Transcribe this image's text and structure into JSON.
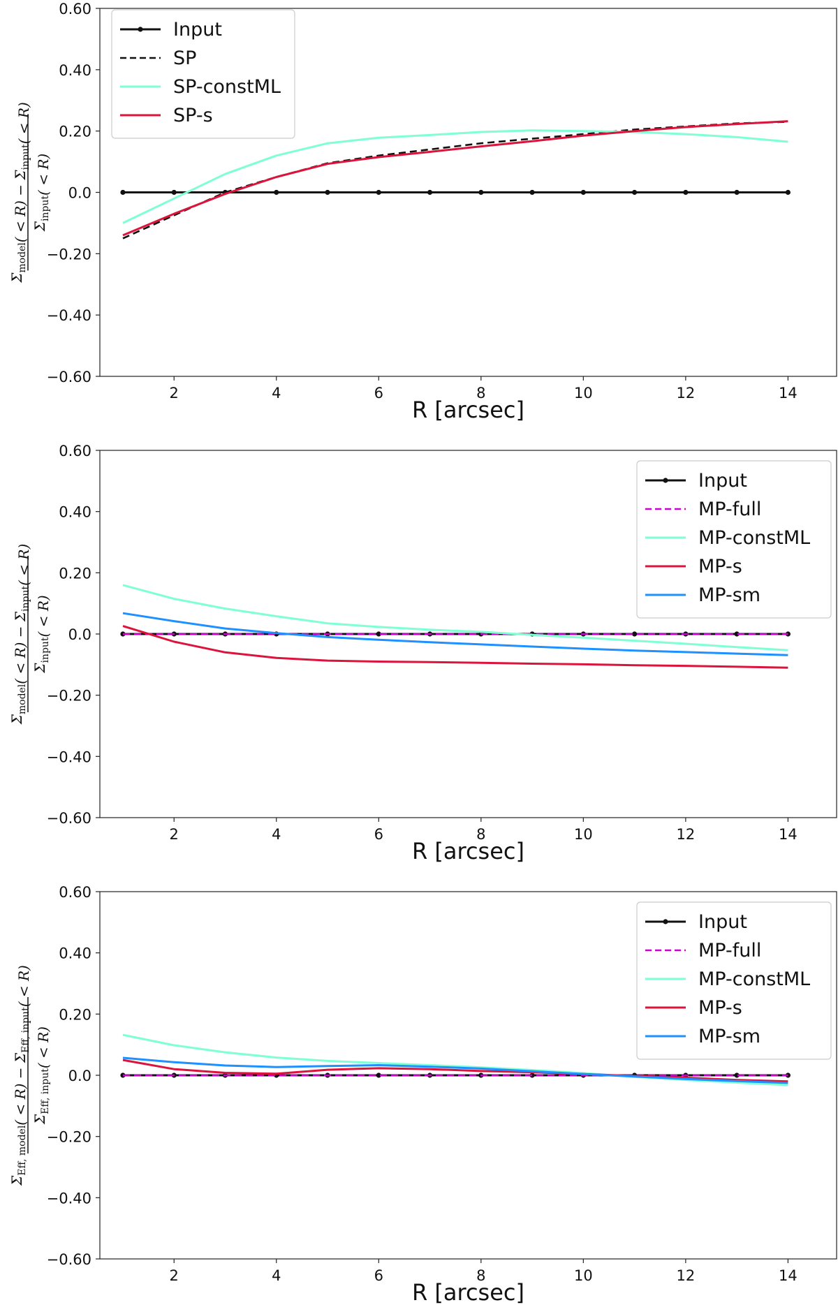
{
  "chart_data": [
    {
      "type": "line",
      "panel": "top",
      "title": "",
      "xlabel": "R [arcsec]",
      "ylabel": {
        "numerator": "Σmodel(<R) − Σinput(<R)",
        "denominator": "Σinput(<R)",
        "num_parts": [
          {
            "t": "Σ",
            "sub": "model"
          },
          {
            "t": "( < R) − Σ"
          },
          {
            "t": "",
            "sub": "input"
          },
          {
            "t": "( < R)"
          }
        ],
        "den_parts": [
          {
            "t": "Σ",
            "sub": "input"
          },
          {
            "t": "( < R)"
          }
        ]
      },
      "xlim": [
        0.55,
        14.95
      ],
      "ylim": [
        -0.6,
        0.6
      ],
      "xticks": [
        2,
        4,
        6,
        8,
        10,
        12,
        14
      ],
      "xtick_labels": [
        "2",
        "4",
        "6",
        "8",
        "10",
        "12",
        "14"
      ],
      "yticks": [
        0.6,
        0.4,
        0.2,
        0.0,
        -0.2,
        -0.4,
        -0.6
      ],
      "ytick_labels": [
        "0.60",
        "0.40",
        "0.20",
        "0.0",
        "−0.20",
        "−0.40",
        "−0.60"
      ],
      "legend_position": "top-left",
      "x": [
        1,
        2,
        3,
        4,
        5,
        6,
        7,
        8,
        9,
        10,
        11,
        12,
        13,
        14
      ],
      "series": [
        {
          "name": "Input",
          "color": "#111111",
          "style": "solid-markers",
          "values": [
            0,
            0,
            0,
            0,
            0,
            0,
            0,
            0,
            0,
            0,
            0,
            0,
            0,
            0
          ]
        },
        {
          "name": "SP",
          "color": "#111111",
          "style": "dashed",
          "values": [
            -0.15,
            -0.075,
            0.0,
            0.05,
            0.095,
            0.12,
            0.14,
            0.16,
            0.175,
            0.19,
            0.205,
            0.215,
            0.225,
            0.23
          ]
        },
        {
          "name": "SP-constML",
          "color": "#7fffd4",
          "style": "solid",
          "values": [
            -0.1,
            -0.02,
            0.06,
            0.12,
            0.16,
            0.178,
            0.187,
            0.197,
            0.202,
            0.2,
            0.197,
            0.19,
            0.18,
            0.165
          ]
        },
        {
          "name": "SP-s",
          "color": "#dc143c",
          "style": "solid",
          "values": [
            -0.14,
            -0.07,
            -0.005,
            0.05,
            0.093,
            0.115,
            0.132,
            0.15,
            0.167,
            0.185,
            0.2,
            0.213,
            0.223,
            0.232
          ]
        }
      ]
    },
    {
      "type": "line",
      "panel": "middle",
      "title": "",
      "xlabel": "R [arcsec]",
      "ylabel": {
        "numerator": "Σmodel(<R) − Σinput(<R)",
        "denominator": "Σinput(<R)",
        "num_parts": [
          {
            "t": "Σ",
            "sub": "model"
          },
          {
            "t": "( < R) − Σ"
          },
          {
            "t": "",
            "sub": "input"
          },
          {
            "t": "( < R)"
          }
        ],
        "den_parts": [
          {
            "t": "Σ",
            "sub": "input"
          },
          {
            "t": "( < R)"
          }
        ]
      },
      "xlim": [
        0.55,
        14.95
      ],
      "ylim": [
        -0.6,
        0.6
      ],
      "xticks": [
        2,
        4,
        6,
        8,
        10,
        12,
        14
      ],
      "xtick_labels": [
        "2",
        "4",
        "6",
        "8",
        "10",
        "12",
        "14"
      ],
      "yticks": [
        0.6,
        0.4,
        0.2,
        0.0,
        -0.2,
        -0.4,
        -0.6
      ],
      "ytick_labels": [
        "0.60",
        "0.40",
        "0.20",
        "0.0",
        "−0.20",
        "−0.40",
        "−0.60"
      ],
      "legend_position": "top-right",
      "x": [
        1,
        2,
        3,
        4,
        5,
        6,
        7,
        8,
        9,
        10,
        11,
        12,
        13,
        14
      ],
      "series": [
        {
          "name": "Input",
          "color": "#111111",
          "style": "solid-markers",
          "values": [
            0,
            0,
            0,
            0,
            0,
            0,
            0,
            0,
            0,
            0,
            0,
            0,
            0,
            0
          ]
        },
        {
          "name": "MP-full",
          "color": "#cc00cc",
          "style": "dashed",
          "values": [
            0,
            0,
            0,
            0,
            0,
            0,
            0,
            0,
            0,
            0,
            0,
            0,
            0,
            0
          ]
        },
        {
          "name": "MP-constML",
          "color": "#7fffd4",
          "style": "solid",
          "values": [
            0.16,
            0.115,
            0.083,
            0.058,
            0.035,
            0.023,
            0.014,
            0.007,
            -0.003,
            -0.012,
            -0.022,
            -0.032,
            -0.043,
            -0.053
          ]
        },
        {
          "name": "MP-s",
          "color": "#dc143c",
          "style": "solid",
          "values": [
            0.026,
            -0.025,
            -0.06,
            -0.078,
            -0.087,
            -0.09,
            -0.092,
            -0.094,
            -0.097,
            -0.099,
            -0.102,
            -0.104,
            -0.107,
            -0.11
          ]
        },
        {
          "name": "MP-sm",
          "color": "#1e90ff",
          "style": "solid",
          "values": [
            0.068,
            0.042,
            0.018,
            0.003,
            -0.01,
            -0.019,
            -0.027,
            -0.034,
            -0.041,
            -0.048,
            -0.054,
            -0.059,
            -0.064,
            -0.069
          ]
        }
      ]
    },
    {
      "type": "line",
      "panel": "bottom",
      "title": "",
      "xlabel": "R [arcsec]",
      "ylabel": {
        "numerator": "ΣEff,model(<R) − ΣEff,input(<R)",
        "denominator": "ΣEff,input(<R)",
        "num_parts": [
          {
            "t": "Σ",
            "sub": "Eff, model"
          },
          {
            "t": "( < R) − Σ"
          },
          {
            "t": "",
            "sub": "Eff, input"
          },
          {
            "t": "( < R)"
          }
        ],
        "den_parts": [
          {
            "t": "Σ",
            "sub": "Eff, input"
          },
          {
            "t": "( < R)"
          }
        ]
      },
      "xlim": [
        0.55,
        14.95
      ],
      "ylim": [
        -0.6,
        0.6
      ],
      "xticks": [
        2,
        4,
        6,
        8,
        10,
        12,
        14
      ],
      "xtick_labels": [
        "2",
        "4",
        "6",
        "8",
        "10",
        "12",
        "14"
      ],
      "yticks": [
        0.6,
        0.4,
        0.2,
        0.0,
        -0.2,
        -0.4,
        -0.6
      ],
      "ytick_labels": [
        "0.60",
        "0.40",
        "0.20",
        "0.0",
        "−0.20",
        "−0.40",
        "−0.60"
      ],
      "legend_position": "top-right",
      "x": [
        1,
        2,
        3,
        4,
        5,
        6,
        7,
        8,
        9,
        10,
        11,
        12,
        13,
        14
      ],
      "series": [
        {
          "name": "Input",
          "color": "#111111",
          "style": "solid-markers",
          "values": [
            0,
            0,
            0,
            0,
            0,
            0,
            0,
            0,
            0,
            0,
            0,
            0,
            0,
            0
          ]
        },
        {
          "name": "MP-full",
          "color": "#cc00cc",
          "style": "dashed",
          "values": [
            0,
            0,
            0,
            0,
            0,
            0,
            0,
            0,
            0,
            0,
            0,
            0,
            0,
            0
          ]
        },
        {
          "name": "MP-constML",
          "color": "#7fffd4",
          "style": "solid",
          "values": [
            0.132,
            0.098,
            0.075,
            0.058,
            0.047,
            0.04,
            0.033,
            0.026,
            0.017,
            0.007,
            -0.005,
            -0.015,
            -0.024,
            -0.032
          ]
        },
        {
          "name": "MP-s",
          "color": "#dc143c",
          "style": "solid",
          "values": [
            0.05,
            0.02,
            0.008,
            0.005,
            0.018,
            0.023,
            0.02,
            0.014,
            0.01,
            0.004,
            -0.002,
            -0.008,
            -0.015,
            -0.02
          ]
        },
        {
          "name": "MP-sm",
          "color": "#1e90ff",
          "style": "solid",
          "values": [
            0.057,
            0.043,
            0.032,
            0.027,
            0.03,
            0.033,
            0.028,
            0.022,
            0.013,
            0.004,
            -0.004,
            -0.012,
            -0.019,
            -0.025
          ]
        }
      ]
    }
  ]
}
